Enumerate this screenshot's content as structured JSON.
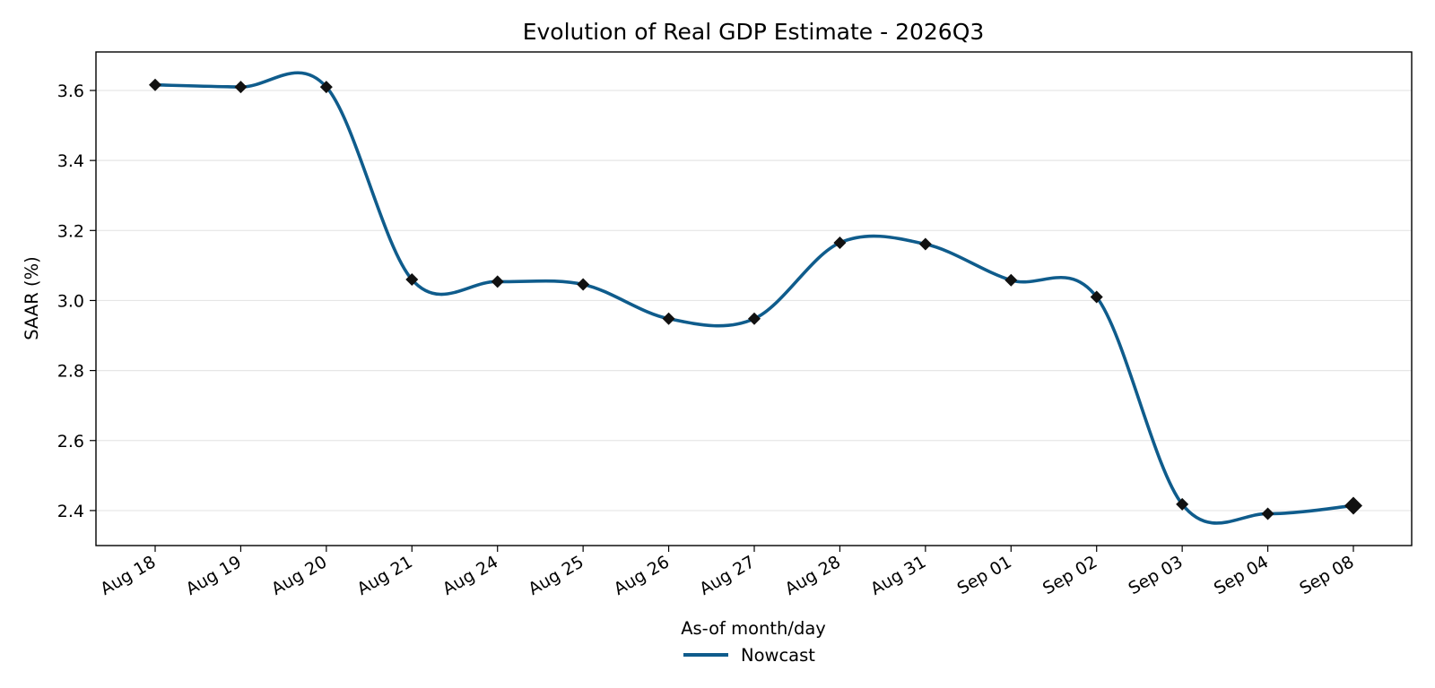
{
  "chart_data": {
    "type": "line",
    "title": "Evolution of Real GDP Estimate - 2026Q3",
    "xlabel": "As-of month/day",
    "ylabel": "SAAR (%)",
    "categories": [
      "Aug 18",
      "Aug 19",
      "Aug 20",
      "Aug 21",
      "Aug 24",
      "Aug 25",
      "Aug 26",
      "Aug 27",
      "Aug 28",
      "Aug 31",
      "Sep 01",
      "Sep 02",
      "Sep 03",
      "Sep 04",
      "Sep 08"
    ],
    "series": [
      {
        "name": "Nowcast",
        "color": "#0f5c8c",
        "marker": "diamond",
        "marker_color": "#111111",
        "values": [
          3.616,
          3.61,
          3.61,
          3.06,
          3.054,
          3.046,
          2.948,
          2.948,
          3.165,
          3.161,
          3.058,
          3.01,
          2.418,
          2.391,
          2.414
        ]
      }
    ],
    "ylim": [
      2.3,
      3.71
    ],
    "yticks": [
      "2.4",
      "2.6",
      "2.8",
      "3.0",
      "3.2",
      "3.4",
      "3.6"
    ],
    "grid": "horizontal",
    "legend_position": "bottom-center",
    "highlight_last_point": true
  }
}
